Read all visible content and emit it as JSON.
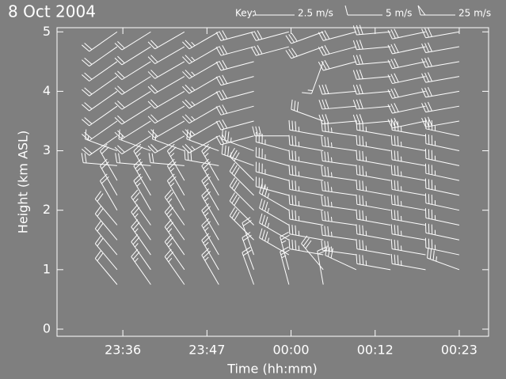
{
  "chart_data": {
    "type": "barb",
    "title": "8 Oct 2004",
    "x_label": "Time (hh:mm)",
    "y_label": "Height (km ASL)",
    "xlim": [
      -32.7,
      27.6
    ],
    "xticks": [
      {
        "value": -23.5,
        "label": "23:36"
      },
      {
        "value": -11.75,
        "label": "23:47"
      },
      {
        "value": 0,
        "label": "00:00"
      },
      {
        "value": 11.75,
        "label": "00:12"
      },
      {
        "value": 23.5,
        "label": "00:23"
      }
    ],
    "ylim": [
      -0.12,
      5.07
    ],
    "yticks": [
      0,
      1,
      2,
      3,
      4,
      5
    ],
    "color": "#ffffff",
    "key": {
      "title": "Key:",
      "items": [
        {
          "speed": 2.5,
          "label": "2.5 m/s"
        },
        {
          "speed": 5,
          "label": "5 m/s"
        },
        {
          "speed": 25,
          "label": "25 m/s"
        }
      ]
    },
    "heights": [
      0.75,
      1.0,
      1.25,
      1.5,
      1.75,
      2.0,
      2.25,
      2.5,
      2.75,
      3.0,
      3.25,
      3.5,
      3.75,
      4.0,
      4.25,
      4.5,
      4.75,
      5.0
    ],
    "profiles": [
      {
        "time": -24.3,
        "direction": [
          320,
          320,
          320,
          320,
          320,
          330,
          330,
          330,
          275,
          290,
          235,
          235,
          235,
          235,
          235,
          235,
          235,
          235
        ],
        "speed": [
          10,
          10,
          10,
          10,
          10,
          10,
          10,
          10,
          10,
          7.5,
          10,
          10,
          10,
          10,
          10,
          10,
          10,
          10
        ]
      },
      {
        "time": -19.6,
        "direction": [
          325,
          325,
          325,
          325,
          325,
          330,
          330,
          330,
          275,
          290,
          238,
          238,
          238,
          238,
          238,
          238,
          238,
          238
        ],
        "speed": [
          12.5,
          12.5,
          12.5,
          12.5,
          12.5,
          12.5,
          12.5,
          12.5,
          10,
          7.5,
          10,
          10,
          10,
          10,
          10,
          10,
          10,
          10
        ]
      },
      {
        "time": -14.9,
        "direction": [
          325,
          325,
          325,
          325,
          325,
          330,
          330,
          330,
          275,
          290,
          240,
          240,
          240,
          240,
          240,
          240,
          240,
          240
        ],
        "speed": [
          12.5,
          12.5,
          12.5,
          12.5,
          12.5,
          12.5,
          12.5,
          12.5,
          10,
          7.5,
          10,
          10,
          10,
          10,
          10,
          10,
          10,
          10
        ]
      },
      {
        "time": -10.1,
        "direction": [
          330,
          330,
          330,
          330,
          330,
          330,
          330,
          330,
          280,
          290,
          240,
          240,
          240,
          240,
          240,
          240,
          240,
          240
        ],
        "speed": [
          12.5,
          12.5,
          12.5,
          12.5,
          12.5,
          12.5,
          12.5,
          12.5,
          15,
          10,
          12.5,
          12.5,
          12.5,
          12.5,
          12.5,
          12.5,
          12.5,
          12.5
        ]
      },
      {
        "time": -5.2,
        "direction": [
          340,
          340,
          340,
          315,
          315,
          315,
          315,
          315,
          290,
          290,
          255,
          255,
          255,
          255,
          255,
          255,
          255,
          255
        ],
        "speed": [
          10,
          10,
          10,
          15,
          15,
          15,
          15,
          15,
          17.5,
          17.5,
          15,
          15,
          15,
          15,
          15,
          15,
          15,
          15
        ]
      },
      {
        "time": -0.3,
        "direction": [
          345,
          345,
          300,
          300,
          300,
          300,
          285,
          285,
          285,
          285,
          270,
          null,
          null,
          null,
          null,
          null,
          255,
          255
        ],
        "speed": [
          12.5,
          12.5,
          17.5,
          17.5,
          17.5,
          17.5,
          17.5,
          17.5,
          17.5,
          17.5,
          15,
          null,
          null,
          null,
          null,
          null,
          15,
          15
        ]
      },
      {
        "time": 4.5,
        "direction": [
          350,
          320,
          280,
          280,
          280,
          280,
          280,
          280,
          280,
          280,
          280,
          290,
          null,
          null,
          null,
          200,
          250,
          250
        ],
        "speed": [
          10,
          15,
          17.5,
          17.5,
          17.5,
          17.5,
          17.5,
          17.5,
          17.5,
          17.5,
          17.5,
          15,
          null,
          null,
          null,
          7.5,
          15,
          15
        ]
      },
      {
        "time": 9.1,
        "direction": [
          null,
          295,
          278,
          278,
          278,
          278,
          278,
          278,
          278,
          278,
          278,
          265,
          265,
          265,
          null,
          255,
          255,
          255
        ],
        "speed": [
          null,
          15,
          17.5,
          17.5,
          17.5,
          17.5,
          17.5,
          17.5,
          17.5,
          17.5,
          17.5,
          15,
          15,
          15,
          null,
          15,
          15,
          15
        ]
      },
      {
        "time": 13.9,
        "direction": [
          null,
          280,
          280,
          280,
          280,
          280,
          280,
          280,
          280,
          280,
          280,
          265,
          265,
          265,
          265,
          265,
          265,
          265
        ],
        "speed": [
          null,
          17.5,
          17.5,
          17.5,
          17.5,
          17.5,
          17.5,
          17.5,
          17.5,
          17.5,
          17.5,
          15,
          15,
          15,
          15,
          15,
          15,
          15
        ]
      },
      {
        "time": 18.8,
        "direction": [
          null,
          280,
          280,
          280,
          280,
          280,
          280,
          280,
          280,
          280,
          280,
          258,
          258,
          258,
          258,
          258,
          258,
          258
        ],
        "speed": [
          null,
          17.5,
          17.5,
          17.5,
          17.5,
          17.5,
          17.5,
          17.5,
          17.5,
          17.5,
          17.5,
          15,
          15,
          15,
          15,
          15,
          15,
          15
        ]
      },
      {
        "time": 23.5,
        "direction": [
          null,
          290,
          282,
          282,
          282,
          282,
          282,
          282,
          282,
          282,
          282,
          260,
          260,
          260,
          260,
          260,
          260,
          260
        ],
        "speed": [
          null,
          17.5,
          17.5,
          17.5,
          17.5,
          17.5,
          17.5,
          17.5,
          17.5,
          17.5,
          17.5,
          15,
          15,
          15,
          15,
          15,
          15,
          15
        ]
      }
    ]
  }
}
